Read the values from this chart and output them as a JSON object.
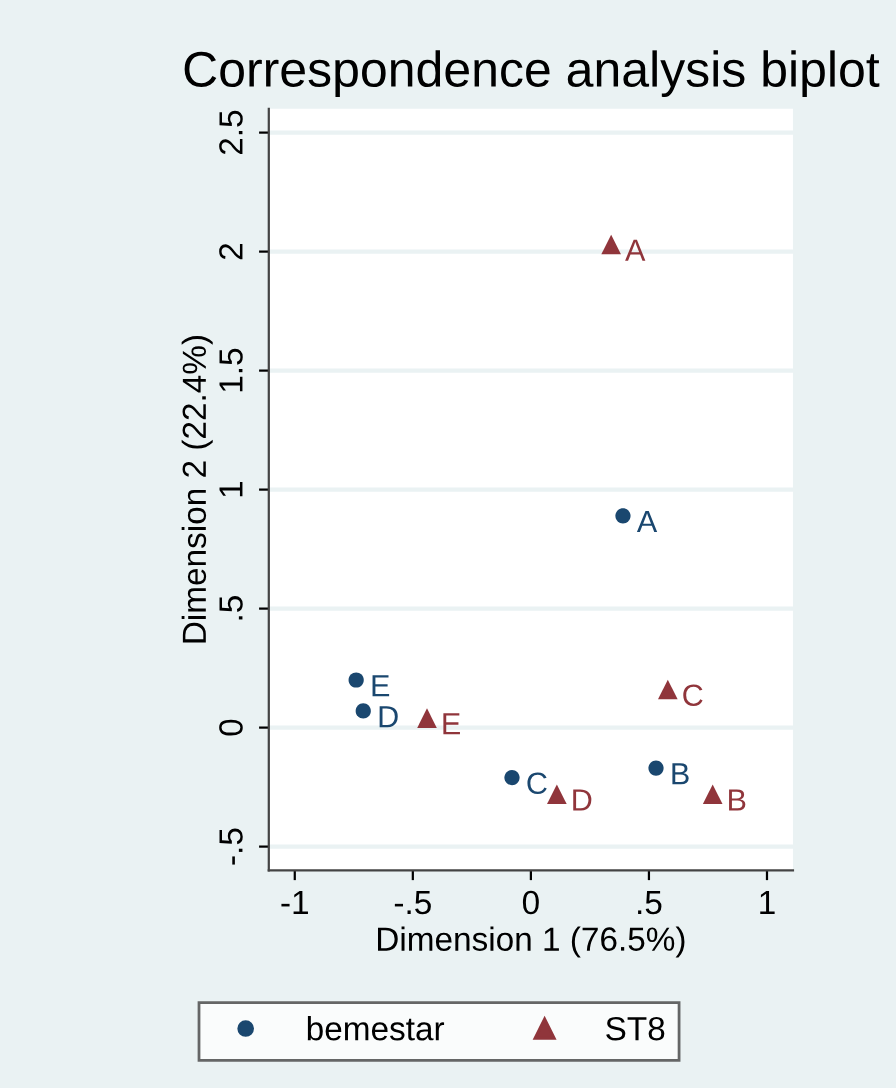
{
  "chart_data": {
    "type": "scatter",
    "title": "Correspondence analysis biplot",
    "xlabel": "Dimension 1 (76.5%)",
    "ylabel": "Dimension 2 (22.4%)",
    "xlim": [
      -1.11,
      1.11
    ],
    "ylim": [
      -0.6,
      2.6
    ],
    "xticks": [
      -1,
      {
        "value": -0.5,
        "label": "-.5"
      },
      0,
      {
        "value": 0.5,
        "label": ".5"
      },
      1
    ],
    "yticks": [
      {
        "value": -0.5,
        "label": "-.5"
      },
      0,
      {
        "value": 0.5,
        "label": ".5"
      },
      1,
      1.5,
      2,
      2.5
    ],
    "grid": "y",
    "legend": "bottom",
    "series": [
      {
        "name": "bemestar",
        "color": "#1a476f",
        "marker": "circle",
        "x": [
          0.39,
          0.53,
          -0.08,
          -0.71,
          -0.74
        ],
        "values": [
          0.89,
          -0.17,
          -0.21,
          0.07,
          0.2
        ],
        "value_labels": [
          "A",
          "B",
          "C",
          "D",
          "E"
        ]
      },
      {
        "name": "ST8",
        "color": "#90353b",
        "marker": "triangle",
        "x": [
          0.34,
          0.77,
          0.58,
          0.11,
          -0.44
        ],
        "values": [
          2.03,
          -0.28,
          0.16,
          -0.28,
          0.04
        ],
        "value_labels": [
          "A",
          "B",
          "C",
          "D",
          "E"
        ]
      }
    ]
  }
}
